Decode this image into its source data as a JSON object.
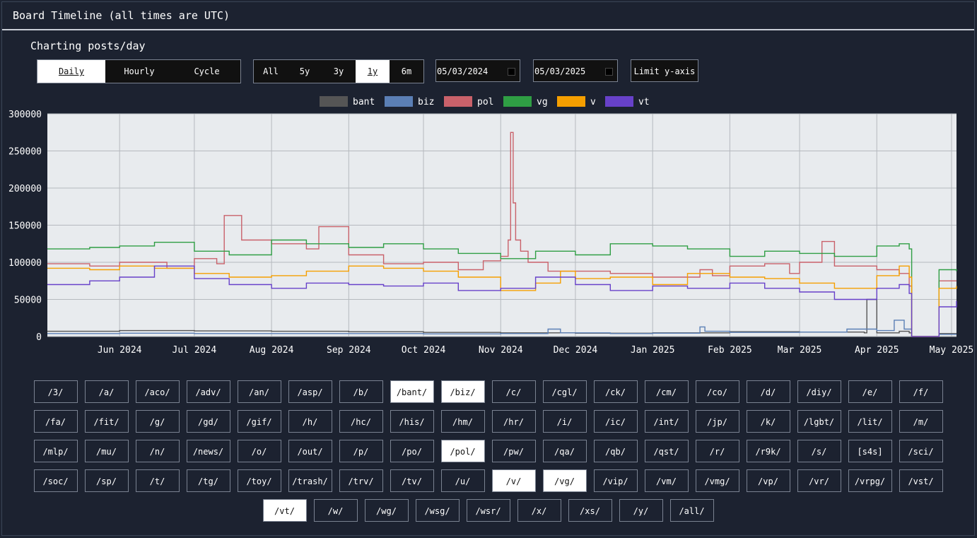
{
  "window": {
    "title": "Board Timeline (all times are UTC)"
  },
  "subtitle": "Charting posts/day",
  "mode_tabs": [
    {
      "label": "Daily",
      "active": true
    },
    {
      "label": "Hourly",
      "active": false
    },
    {
      "label": "Cycle",
      "active": false
    }
  ],
  "range_tabs": [
    {
      "label": "All",
      "active": false
    },
    {
      "label": "5y",
      "active": false
    },
    {
      "label": "3y",
      "active": false
    },
    {
      "label": "1y",
      "active": true
    },
    {
      "label": "6m",
      "active": false
    }
  ],
  "date_from": "05/03/2024",
  "date_to": "05/03/2025",
  "limit_button": "Limit y-axis",
  "colors": {
    "page_bg": "#1c2230",
    "plot_bg": "#e8ebee",
    "grid": "#b5b9be"
  },
  "chart_data": {
    "type": "line",
    "step": true,
    "x_start": "2024-05-03",
    "x_end": "2025-05-03",
    "ylim": [
      0,
      300000
    ],
    "y_ticks": [
      0,
      50000,
      100000,
      150000,
      200000,
      250000,
      300000
    ],
    "x_ticks": [
      {
        "date": "2024-06-01",
        "label": "Jun 2024"
      },
      {
        "date": "2024-07-01",
        "label": "Jul 2024"
      },
      {
        "date": "2024-08-01",
        "label": "Aug 2024"
      },
      {
        "date": "2024-09-01",
        "label": "Sep 2024"
      },
      {
        "date": "2024-10-01",
        "label": "Oct 2024"
      },
      {
        "date": "2024-11-01",
        "label": "Nov 2024"
      },
      {
        "date": "2024-12-01",
        "label": "Dec 2024"
      },
      {
        "date": "2025-01-01",
        "label": "Jan 2025"
      },
      {
        "date": "2025-02-01",
        "label": "Feb 2025"
      },
      {
        "date": "2025-03-01",
        "label": "Mar 2025"
      },
      {
        "date": "2025-04-01",
        "label": "Apr 2025"
      },
      {
        "date": "2025-05-01",
        "label": "May 2025"
      }
    ],
    "legend_position": "top",
    "series": [
      {
        "name": "bant",
        "color": "#555555",
        "x": [
          "2024-05-03",
          "2024-06-01",
          "2024-07-01",
          "2024-08-01",
          "2024-09-01",
          "2024-10-01",
          "2024-11-01",
          "2024-12-01",
          "2025-01-01",
          "2025-02-01",
          "2025-03-01",
          "2025-03-27",
          "2025-03-28",
          "2025-04-01",
          "2025-04-10",
          "2025-04-14",
          "2025-04-15",
          "2025-04-25",
          "2025-04-26",
          "2025-05-03"
        ],
        "y": [
          7000,
          8000,
          7500,
          7000,
          6500,
          5500,
          5000,
          4500,
          5000,
          6500,
          6000,
          5000,
          50000,
          5000,
          7000,
          5000,
          0,
          0,
          4000,
          4000
        ]
      },
      {
        "name": "biz",
        "color": "#5b7fb5",
        "x": [
          "2024-05-03",
          "2024-06-01",
          "2024-07-01",
          "2024-08-01",
          "2024-09-01",
          "2024-10-01",
          "2024-11-01",
          "2024-11-20",
          "2024-11-25",
          "2024-12-15",
          "2025-01-01",
          "2025-01-20",
          "2025-01-22",
          "2025-02-01",
          "2025-03-01",
          "2025-03-20",
          "2025-04-01",
          "2025-04-08",
          "2025-04-12",
          "2025-04-15",
          "2025-04-25",
          "2025-04-26",
          "2025-05-03"
        ],
        "y": [
          4000,
          4500,
          4000,
          4000,
          4000,
          3500,
          4000,
          10000,
          5000,
          4000,
          4500,
          13000,
          7000,
          5500,
          6000,
          10000,
          8000,
          22000,
          10000,
          0,
          0,
          3000,
          3000
        ]
      },
      {
        "name": "pol",
        "color": "#c9616a",
        "x": [
          "2024-05-03",
          "2024-05-20",
          "2024-06-01",
          "2024-06-20",
          "2024-07-01",
          "2024-07-10",
          "2024-07-13",
          "2024-07-20",
          "2024-08-01",
          "2024-08-15",
          "2024-08-20",
          "2024-09-01",
          "2024-09-15",
          "2024-10-01",
          "2024-10-15",
          "2024-10-25",
          "2024-11-01",
          "2024-11-04",
          "2024-11-05",
          "2024-11-06",
          "2024-11-07",
          "2024-11-09",
          "2024-11-12",
          "2024-11-20",
          "2024-12-01",
          "2024-12-15",
          "2025-01-01",
          "2025-01-20",
          "2025-01-25",
          "2025-02-01",
          "2025-02-15",
          "2025-02-25",
          "2025-03-01",
          "2025-03-10",
          "2025-03-15",
          "2025-04-01",
          "2025-04-10",
          "2025-04-14",
          "2025-04-15",
          "2025-04-25",
          "2025-04-26",
          "2025-05-03"
        ],
        "y": [
          98000,
          95000,
          100000,
          92000,
          105000,
          98000,
          163000,
          130000,
          125000,
          118000,
          148000,
          110000,
          98000,
          100000,
          90000,
          102000,
          108000,
          130000,
          275000,
          180000,
          130000,
          115000,
          100000,
          88000,
          88000,
          85000,
          80000,
          90000,
          82000,
          95000,
          98000,
          85000,
          100000,
          128000,
          95000,
          90000,
          85000,
          68000,
          0,
          0,
          75000,
          75000
        ]
      },
      {
        "name": "vg",
        "color": "#2f9e44",
        "x": [
          "2024-05-03",
          "2024-05-20",
          "2024-06-01",
          "2024-06-15",
          "2024-07-01",
          "2024-07-15",
          "2024-08-01",
          "2024-08-15",
          "2024-09-01",
          "2024-09-15",
          "2024-10-01",
          "2024-10-15",
          "2024-11-01",
          "2024-11-15",
          "2024-12-01",
          "2024-12-15",
          "2025-01-01",
          "2025-01-15",
          "2025-02-01",
          "2025-02-15",
          "2025-03-01",
          "2025-03-15",
          "2025-04-01",
          "2025-04-10",
          "2025-04-14",
          "2025-04-15",
          "2025-04-25",
          "2025-04-26",
          "2025-05-03"
        ],
        "y": [
          118000,
          120000,
          122000,
          127000,
          115000,
          110000,
          130000,
          125000,
          120000,
          125000,
          118000,
          112000,
          105000,
          115000,
          110000,
          125000,
          122000,
          118000,
          108000,
          115000,
          112000,
          108000,
          122000,
          125000,
          118000,
          0,
          0,
          90000,
          88000
        ]
      },
      {
        "name": "v",
        "color": "#f59f00",
        "x": [
          "2024-05-03",
          "2024-05-20",
          "2024-06-01",
          "2024-06-15",
          "2024-07-01",
          "2024-07-15",
          "2024-08-01",
          "2024-08-15",
          "2024-09-01",
          "2024-09-15",
          "2024-10-01",
          "2024-10-15",
          "2024-11-01",
          "2024-11-15",
          "2024-11-25",
          "2024-12-01",
          "2024-12-15",
          "2025-01-01",
          "2025-01-15",
          "2025-02-01",
          "2025-02-15",
          "2025-03-01",
          "2025-03-15",
          "2025-04-01",
          "2025-04-10",
          "2025-04-14",
          "2025-04-15",
          "2025-04-25",
          "2025-04-26",
          "2025-05-03"
        ],
        "y": [
          92000,
          90000,
          95000,
          92000,
          85000,
          80000,
          82000,
          88000,
          95000,
          92000,
          88000,
          80000,
          62000,
          72000,
          88000,
          78000,
          80000,
          70000,
          85000,
          80000,
          78000,
          72000,
          65000,
          82000,
          95000,
          80000,
          0,
          0,
          65000,
          68000
        ]
      },
      {
        "name": "vt",
        "color": "#6741c9",
        "x": [
          "2024-05-03",
          "2024-05-20",
          "2024-06-01",
          "2024-06-15",
          "2024-07-01",
          "2024-07-15",
          "2024-08-01",
          "2024-08-15",
          "2024-09-01",
          "2024-09-15",
          "2024-10-01",
          "2024-10-15",
          "2024-11-01",
          "2024-11-15",
          "2024-12-01",
          "2024-12-15",
          "2025-01-01",
          "2025-01-15",
          "2025-02-01",
          "2025-02-15",
          "2025-03-01",
          "2025-03-15",
          "2025-04-01",
          "2025-04-10",
          "2025-04-14",
          "2025-04-15",
          "2025-04-25",
          "2025-04-26",
          "2025-05-03"
        ],
        "y": [
          70000,
          75000,
          80000,
          95000,
          78000,
          70000,
          65000,
          72000,
          70000,
          68000,
          72000,
          62000,
          65000,
          80000,
          70000,
          62000,
          68000,
          65000,
          72000,
          65000,
          60000,
          50000,
          65000,
          70000,
          58000,
          0,
          0,
          40000,
          48000
        ]
      }
    ]
  },
  "boards": [
    [
      "/3/",
      "/a/",
      "/aco/",
      "/adv/",
      "/an/",
      "/asp/",
      "/b/",
      "/bant/",
      "/biz/",
      "/c/",
      "/cgl/",
      "/ck/",
      "/cm/",
      "/co/",
      "/d/",
      "/diy/",
      "/e/",
      "/f/"
    ],
    [
      "/fa/",
      "/fit/",
      "/g/",
      "/gd/",
      "/gif/",
      "/h/",
      "/hc/",
      "/his/",
      "/hm/",
      "/hr/",
      "/i/",
      "/ic/",
      "/int/",
      "/jp/",
      "/k/",
      "/lgbt/",
      "/lit/",
      "/m/"
    ],
    [
      "/mlp/",
      "/mu/",
      "/n/",
      "/news/",
      "/o/",
      "/out/",
      "/p/",
      "/po/",
      "/pol/",
      "/pw/",
      "/qa/",
      "/qb/",
      "/qst/",
      "/r/",
      "/r9k/",
      "/s/",
      "[s4s]",
      "/sci/"
    ],
    [
      "/soc/",
      "/sp/",
      "/t/",
      "/tg/",
      "/toy/",
      "/trash/",
      "/trv/",
      "/tv/",
      "/u/",
      "/v/",
      "/vg/",
      "/vip/",
      "/vm/",
      "/vmg/",
      "/vp/",
      "/vr/",
      "/vrpg/",
      "/vst/"
    ],
    [
      "/vt/",
      "/w/",
      "/wg/",
      "/wsg/",
      "/wsr/",
      "/x/",
      "/xs/",
      "/y/",
      "/all/"
    ]
  ],
  "selected_boards": [
    "/bant/",
    "/biz/",
    "/pol/",
    "/v/",
    "/vg/",
    "/vt/"
  ]
}
